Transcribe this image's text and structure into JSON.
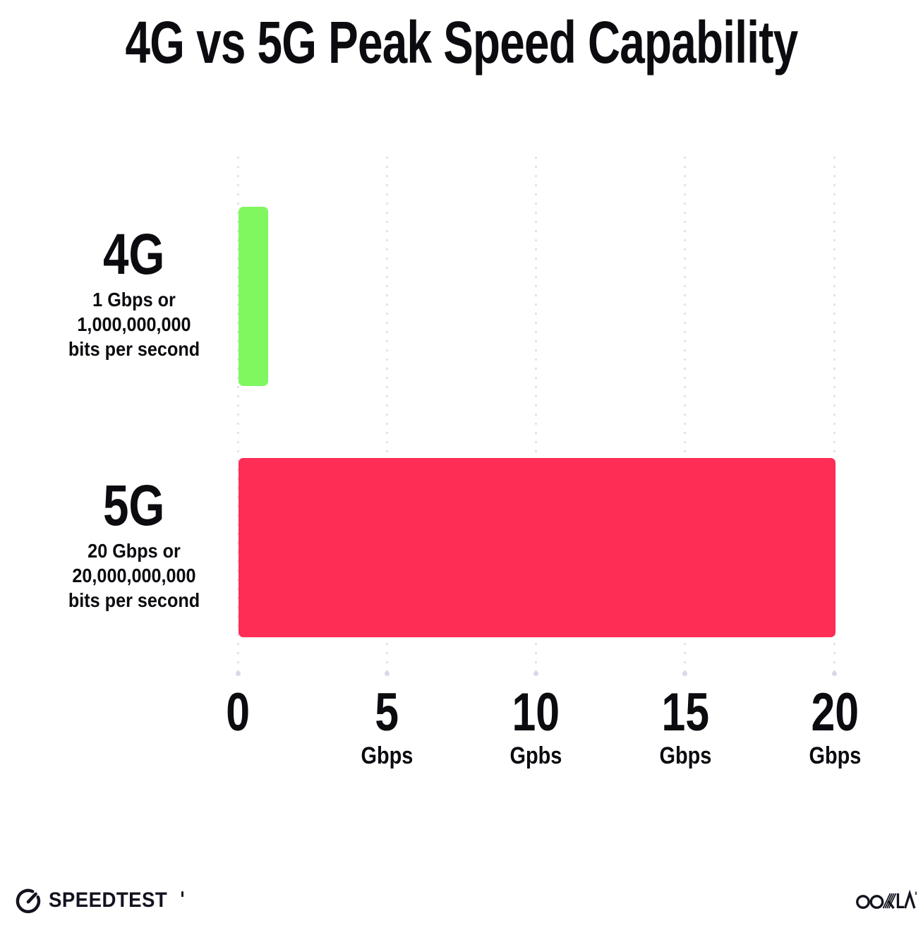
{
  "title": "4G vs 5G Peak Speed Capability",
  "chart_data": {
    "type": "bar",
    "orientation": "horizontal",
    "title": "4G vs 5G Peak Speed Capability",
    "categories": [
      "4G",
      "5G"
    ],
    "values": [
      1,
      20
    ],
    "unit": "Gbps",
    "xlim": [
      0,
      20
    ],
    "x_ticks": [
      0,
      5,
      10,
      15,
      20
    ],
    "x_tick_labels": [
      {
        "value": "0",
        "unit": ""
      },
      {
        "value": "5",
        "unit": "Gbps"
      },
      {
        "value": "10",
        "unit": "Gpbs"
      },
      {
        "value": "15",
        "unit": "Gbps"
      },
      {
        "value": "20",
        "unit": "Gbps"
      }
    ],
    "grid": "vertical dotted gridlines at each tick",
    "legend": "none",
    "bars": [
      {
        "label": "4G",
        "sublabel_lines": [
          "1 Gbps or",
          "1,000,000,000",
          "bits per second"
        ],
        "value_gbps": 1,
        "color": "#80F75F"
      },
      {
        "label": "5G",
        "sublabel_lines": [
          "20 Gbps or",
          "20,000,000,000",
          "bits per second"
        ],
        "value_gbps": 20,
        "color": "#FD2D55"
      }
    ]
  },
  "footer": {
    "speedtest_label": "SPEEDTEST",
    "ookla_label": "OOKLA"
  },
  "colors": {
    "bar_4g": "#80F75F",
    "bar_5g": "#FD2D55",
    "text": "#0B0B10",
    "gridline": "#E3E3EE",
    "background": "#FFFFFF"
  }
}
